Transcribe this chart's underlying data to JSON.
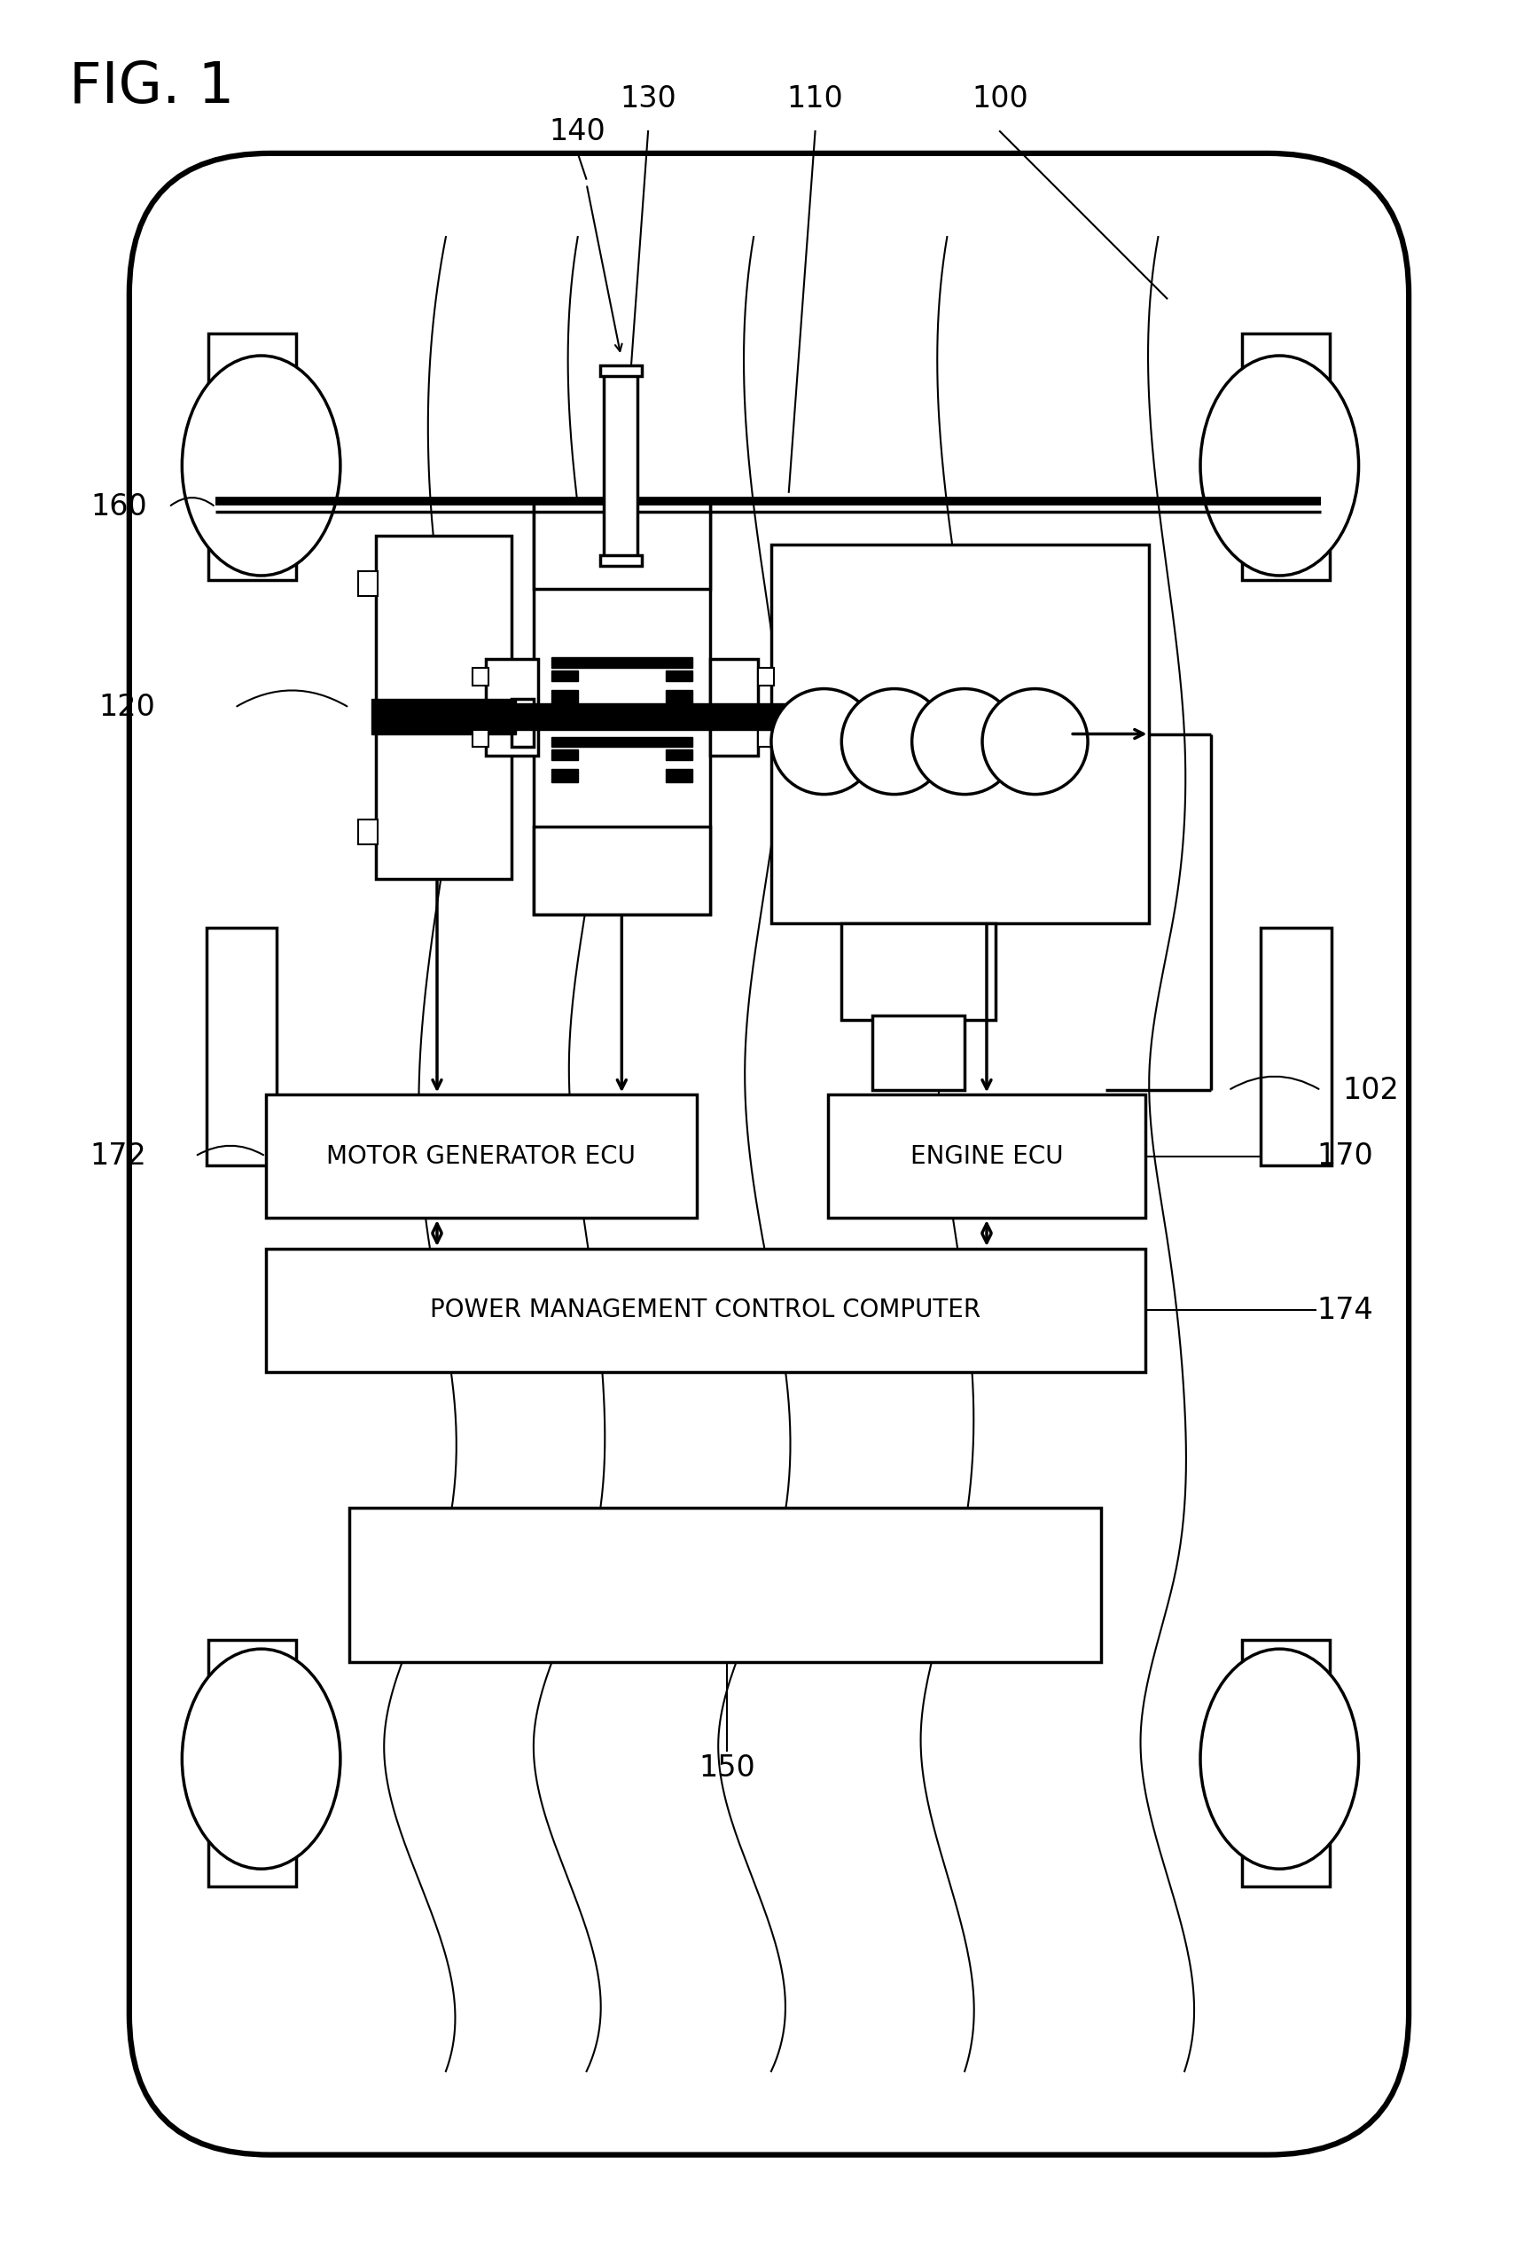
{
  "background_color": "#ffffff",
  "line_color": "#000000",
  "labels": {
    "fig_title": "FIG. 1",
    "100": "100",
    "102": "102",
    "110": "110",
    "120": "120",
    "130": "130",
    "140": "140",
    "150": "150",
    "160": "160",
    "170": "170",
    "172": "172",
    "174": "174",
    "motor_gen_ecu": "MOTOR GENERATOR ECU",
    "engine_ecu": "ENGINE ECU",
    "power_mgmt": "POWER MANAGEMENT CONTROL COMPUTER"
  },
  "lw_thin": 1.5,
  "lw_med": 2.5,
  "lw_thick": 4.5,
  "lw_bold": 7.0
}
